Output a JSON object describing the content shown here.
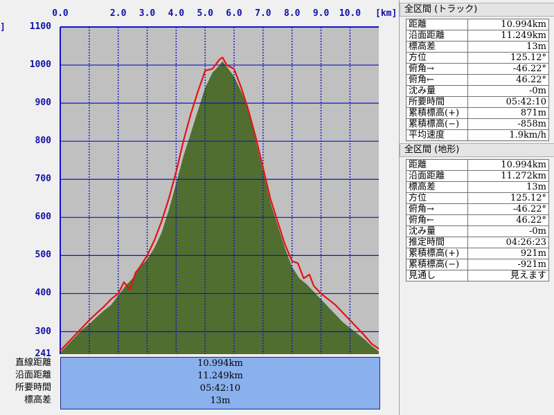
{
  "chart_data": {
    "type": "area",
    "xlabel": "",
    "ylabel": "",
    "x_unit": "[km]",
    "xlim": [
      0,
      10.994
    ],
    "ylim": [
      241,
      1100
    ],
    "x_ticks": [
      "0.0",
      "2.0",
      "3.0",
      "4.0",
      "5.0",
      "6.0",
      "7.0",
      "8.0",
      "9.0",
      "10.0"
    ],
    "x_tick_values": [
      0.0,
      2.0,
      3.0,
      4.0,
      5.0,
      6.0,
      7.0,
      8.0,
      9.0,
      10.0
    ],
    "x_grid_values": [
      1.0,
      2.0,
      3.0,
      4.0,
      5.0,
      6.0,
      7.0,
      8.0,
      9.0,
      10.0
    ],
    "y_ticks": [
      "1100",
      "1000",
      "900",
      "800",
      "700",
      "600",
      "500",
      "400",
      "300",
      "241"
    ],
    "y_tick_values": [
      1100,
      1000,
      900,
      800,
      700,
      600,
      500,
      400,
      300,
      241
    ],
    "y_grid_values": [
      1000,
      900,
      800,
      700,
      600,
      500,
      400,
      300
    ],
    "grid": true,
    "colors": {
      "plot_background": "#c0c0c0",
      "terrain_fill": "#4f6e30",
      "track_line": "#e81010",
      "grid_line": "#1010c8",
      "axis_text": "#1010a8"
    },
    "series": [
      {
        "x": [
          0.0,
          0.25,
          0.5,
          0.75,
          1.0,
          1.25,
          1.5,
          1.75,
          2.0,
          2.25,
          2.5,
          2.75,
          3.0,
          3.25,
          3.5,
          3.75,
          4.0,
          4.25,
          4.5,
          4.75,
          5.0,
          5.25,
          5.5,
          5.6,
          5.75,
          6.0,
          6.25,
          6.5,
          6.75,
          7.0,
          7.25,
          7.5,
          7.75,
          8.0,
          8.25,
          8.5,
          8.75,
          9.0,
          9.25,
          9.5,
          9.75,
          10.0,
          10.25,
          10.5,
          10.75,
          10.994
        ],
        "values": [
          245,
          265,
          285,
          305,
          320,
          338,
          355,
          370,
          395,
          420,
          440,
          470,
          490,
          520,
          560,
          620,
          690,
          760,
          820,
          880,
          940,
          980,
          1000,
          1010,
          995,
          970,
          930,
          880,
          800,
          720,
          640,
          580,
          520,
          470,
          440,
          425,
          405,
          385,
          365,
          345,
          325,
          310,
          295,
          280,
          262,
          248
        ]
      },
      {
        "x": [
          0.0,
          0.25,
          0.5,
          0.75,
          1.0,
          1.25,
          1.5,
          1.75,
          2.0,
          2.2,
          2.4,
          2.6,
          2.75,
          3.0,
          3.25,
          3.5,
          3.75,
          4.0,
          4.25,
          4.5,
          4.75,
          5.0,
          5.25,
          5.5,
          5.6,
          5.75,
          6.0,
          6.25,
          6.5,
          6.75,
          7.0,
          7.25,
          7.5,
          7.75,
          8.0,
          8.2,
          8.4,
          8.6,
          8.75,
          9.0,
          9.25,
          9.5,
          9.75,
          10.0,
          10.25,
          10.5,
          10.75,
          10.994
        ],
        "values": [
          250,
          270,
          290,
          310,
          330,
          348,
          365,
          385,
          400,
          430,
          410,
          455,
          470,
          500,
          540,
          590,
          650,
          720,
          800,
          870,
          930,
          985,
          990,
          1015,
          1020,
          1000,
          990,
          940,
          880,
          810,
          730,
          650,
          590,
          530,
          485,
          480,
          440,
          450,
          420,
          400,
          385,
          370,
          350,
          330,
          310,
          290,
          268,
          255
        ]
      }
    ]
  },
  "bottom_summary": {
    "labels": [
      "直線距離",
      "沿面距離",
      "所要時間",
      "標高差"
    ],
    "values": [
      "10.994km",
      "11.249km",
      "05:42:10",
      "13m"
    ]
  },
  "left_edge_glyph": "]",
  "track_panel": {
    "title": "全区間 (トラック)",
    "rows": [
      {
        "label": "距離",
        "value": "10.994km"
      },
      {
        "label": "沿面距離",
        "value": "11.249km"
      },
      {
        "label": "標高差",
        "value": "13m"
      },
      {
        "label": "方位",
        "value": "125.12°"
      },
      {
        "label": "俯角→",
        "value": "-46.22°"
      },
      {
        "label": "俯角←",
        "value": "46.22°"
      },
      {
        "label": "沈み量",
        "value": "-0m"
      },
      {
        "label": "所要時間",
        "value": "05:42:10"
      },
      {
        "label": "累積標高(+)",
        "value": "871m"
      },
      {
        "label": "累積標高(−)",
        "value": "-858m"
      },
      {
        "label": "平均速度",
        "value": "1.9km/h"
      }
    ]
  },
  "terrain_panel": {
    "title": "全区間 (地形)",
    "rows": [
      {
        "label": "距離",
        "value": "10.994km"
      },
      {
        "label": "沿面距離",
        "value": "11.272km"
      },
      {
        "label": "標高差",
        "value": "13m"
      },
      {
        "label": "方位",
        "value": "125.12°"
      },
      {
        "label": "俯角→",
        "value": "-46.22°"
      },
      {
        "label": "俯角←",
        "value": "46.22°"
      },
      {
        "label": "沈み量",
        "value": "-0m"
      },
      {
        "label": "推定時間",
        "value": "04:26:23"
      },
      {
        "label": "累積標高(+)",
        "value": "921m"
      },
      {
        "label": "累積標高(−)",
        "value": "-921m"
      },
      {
        "label": "見通し",
        "value": "見えます"
      }
    ]
  }
}
